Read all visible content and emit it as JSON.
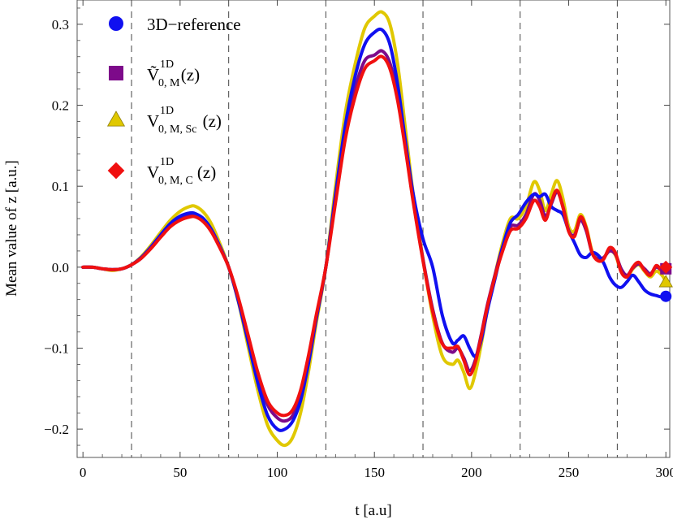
{
  "chart_data": {
    "type": "line",
    "xlabel": "t  [a.u]",
    "ylabel": "Mean value of z   [a.u.]",
    "xlim": [
      -3,
      302
    ],
    "ylim": [
      -0.235,
      0.33
    ],
    "xticks": [
      0,
      50,
      100,
      150,
      200,
      250,
      300
    ],
    "xtick_labels": [
      "0",
      "50",
      "100",
      "150",
      "200",
      "250",
      "300"
    ],
    "yticks": [
      -0.2,
      -0.1,
      0.0,
      0.1,
      0.2,
      0.3
    ],
    "ytick_labels": [
      "−0.2",
      "−0.1",
      "0.0",
      "0.1",
      "0.2",
      "0.3"
    ],
    "vlines": [
      25,
      75,
      125,
      175,
      225,
      275
    ],
    "grid": false,
    "legend_position": "top-left",
    "legend": [
      {
        "marker": "circle",
        "color": "#1010f0",
        "label": "3D−reference",
        "base": "",
        "sup": "",
        "sub": "",
        "tail": ""
      },
      {
        "marker": "square",
        "color": "#7d0a8a",
        "label": "",
        "base": "Ṽ",
        "sup": "1D",
        "sub": "0, M",
        "tail": "(z)"
      },
      {
        "marker": "triangle",
        "color": "#e0c800",
        "label": "",
        "base": "V",
        "sup": "1D",
        "sub": "0, M, Sc",
        "tail": "(z)"
      },
      {
        "marker": "diamond",
        "color": "#f01010",
        "label": "",
        "base": "V",
        "sup": "1D",
        "sub": "0, M, C",
        "tail": "(z)"
      }
    ],
    "series": [
      {
        "color": "#e0c800",
        "end_marker": "triangle",
        "x": [
          0,
          5,
          10,
          15,
          20,
          25,
          30,
          35,
          40,
          45,
          50,
          55,
          58,
          62,
          66,
          70,
          75,
          80,
          85,
          90,
          95,
          100,
          104,
          108,
          112,
          116,
          120,
          125,
          130,
          135,
          140,
          145,
          150,
          154,
          158,
          162,
          166,
          170,
          175,
          180,
          185,
          190,
          193,
          196,
          199,
          202,
          205,
          208,
          212,
          216,
          220,
          224,
          228,
          232,
          235,
          238,
          241,
          244,
          247,
          250,
          253,
          256,
          259,
          262,
          265,
          268,
          271,
          274,
          277,
          280,
          283,
          286,
          289,
          292,
          295,
          298,
          300
        ],
        "y": [
          0,
          0,
          -0.002,
          -0.004,
          -0.002,
          0.003,
          0.013,
          0.027,
          0.043,
          0.058,
          0.069,
          0.075,
          0.075,
          0.068,
          0.054,
          0.032,
          0.0,
          -0.043,
          -0.098,
          -0.152,
          -0.195,
          -0.214,
          -0.22,
          -0.21,
          -0.18,
          -0.13,
          -0.07,
          0.0,
          0.1,
          0.19,
          0.25,
          0.295,
          0.31,
          0.315,
          0.3,
          0.25,
          0.17,
          0.09,
          0.01,
          -0.06,
          -0.11,
          -0.12,
          -0.115,
          -0.13,
          -0.15,
          -0.13,
          -0.095,
          -0.055,
          -0.01,
          0.03,
          0.06,
          0.06,
          0.075,
          0.105,
          0.095,
          0.07,
          0.09,
          0.107,
          0.085,
          0.05,
          0.045,
          0.065,
          0.05,
          0.02,
          0.01,
          0.012,
          0.02,
          0.015,
          -0.005,
          -0.012,
          -0.002,
          0.003,
          -0.005,
          -0.012,
          -0.005,
          -0.01,
          -0.018
        ]
      },
      {
        "color": "#7d0a8a",
        "end_marker": "square",
        "x": [
          0,
          5,
          10,
          15,
          20,
          25,
          30,
          35,
          40,
          45,
          50,
          55,
          58,
          62,
          66,
          70,
          75,
          80,
          85,
          90,
          95,
          100,
          104,
          108,
          112,
          116,
          120,
          125,
          130,
          135,
          140,
          145,
          150,
          154,
          158,
          162,
          166,
          170,
          175,
          180,
          185,
          190,
          193,
          196,
          199,
          202,
          205,
          208,
          212,
          216,
          220,
          224,
          228,
          232,
          235,
          238,
          241,
          244,
          247,
          250,
          253,
          256,
          259,
          262,
          265,
          268,
          271,
          274,
          277,
          280,
          283,
          286,
          289,
          292,
          295,
          298,
          300
        ],
        "y": [
          0,
          0,
          -0.002,
          -0.003,
          -0.002,
          0.003,
          0.011,
          0.024,
          0.038,
          0.052,
          0.061,
          0.065,
          0.064,
          0.058,
          0.046,
          0.027,
          0.0,
          -0.04,
          -0.087,
          -0.135,
          -0.17,
          -0.186,
          -0.19,
          -0.183,
          -0.158,
          -0.116,
          -0.063,
          0.0,
          0.086,
          0.165,
          0.22,
          0.255,
          0.262,
          0.267,
          0.252,
          0.21,
          0.148,
          0.082,
          0.01,
          -0.052,
          -0.094,
          -0.105,
          -0.1,
          -0.112,
          -0.128,
          -0.114,
          -0.083,
          -0.048,
          -0.01,
          0.025,
          0.05,
          0.052,
          0.065,
          0.09,
          0.083,
          0.063,
          0.078,
          0.093,
          0.075,
          0.045,
          0.04,
          0.058,
          0.045,
          0.018,
          0.01,
          0.012,
          0.02,
          0.016,
          -0.002,
          -0.01,
          -0.001,
          0.004,
          -0.002,
          -0.008,
          0.0,
          -0.004,
          -0.002
        ]
      },
      {
        "color": "#1010f0",
        "end_marker": "circle",
        "x": [
          0,
          5,
          10,
          15,
          20,
          25,
          30,
          35,
          40,
          45,
          50,
          55,
          58,
          62,
          66,
          70,
          75,
          80,
          85,
          90,
          95,
          100,
          104,
          108,
          112,
          116,
          120,
          125,
          130,
          135,
          140,
          145,
          150,
          154,
          158,
          162,
          166,
          170,
          175,
          180,
          185,
          190,
          193,
          196,
          199,
          202,
          205,
          208,
          212,
          216,
          220,
          224,
          228,
          232,
          235,
          238,
          241,
          244,
          247,
          250,
          253,
          256,
          259,
          262,
          265,
          268,
          271,
          274,
          277,
          280,
          283,
          286,
          289,
          292,
          295,
          298,
          300
        ],
        "y": [
          0,
          0,
          -0.002,
          -0.003,
          -0.002,
          0.003,
          0.012,
          0.025,
          0.04,
          0.054,
          0.063,
          0.067,
          0.066,
          0.06,
          0.047,
          0.028,
          0.0,
          -0.042,
          -0.092,
          -0.143,
          -0.183,
          -0.2,
          -0.2,
          -0.19,
          -0.165,
          -0.12,
          -0.065,
          0.0,
          0.09,
          0.175,
          0.235,
          0.275,
          0.29,
          0.293,
          0.275,
          0.225,
          0.155,
          0.09,
          0.035,
          0.0,
          -0.06,
          -0.093,
          -0.09,
          -0.085,
          -0.1,
          -0.11,
          -0.09,
          -0.055,
          -0.015,
          0.025,
          0.055,
          0.065,
          0.08,
          0.09,
          0.087,
          0.09,
          0.075,
          0.07,
          0.065,
          0.045,
          0.03,
          0.015,
          0.012,
          0.018,
          0.015,
          0.005,
          -0.012,
          -0.022,
          -0.025,
          -0.018,
          -0.01,
          -0.018,
          -0.028,
          -0.033,
          -0.035,
          -0.037,
          -0.036
        ]
      },
      {
        "color": "#f01010",
        "end_marker": "diamond",
        "x": [
          0,
          5,
          10,
          15,
          20,
          25,
          30,
          35,
          40,
          45,
          50,
          55,
          58,
          62,
          66,
          70,
          75,
          80,
          85,
          90,
          95,
          100,
          104,
          108,
          112,
          116,
          120,
          125,
          130,
          135,
          140,
          145,
          150,
          154,
          158,
          162,
          166,
          170,
          175,
          180,
          185,
          190,
          193,
          196,
          199,
          202,
          205,
          208,
          212,
          216,
          220,
          224,
          228,
          232,
          235,
          238,
          241,
          244,
          247,
          250,
          253,
          256,
          259,
          262,
          265,
          268,
          271,
          274,
          277,
          280,
          283,
          286,
          289,
          292,
          295,
          298,
          300
        ],
        "y": [
          0,
          0,
          -0.002,
          -0.003,
          -0.002,
          0.003,
          0.011,
          0.023,
          0.037,
          0.05,
          0.058,
          0.062,
          0.062,
          0.056,
          0.044,
          0.026,
          0.0,
          -0.038,
          -0.084,
          -0.13,
          -0.165,
          -0.18,
          -0.183,
          -0.176,
          -0.152,
          -0.11,
          -0.06,
          0.0,
          0.08,
          0.158,
          0.21,
          0.245,
          0.255,
          0.26,
          0.245,
          0.205,
          0.145,
          0.08,
          0.008,
          -0.055,
          -0.095,
          -0.1,
          -0.098,
          -0.115,
          -0.133,
          -0.117,
          -0.085,
          -0.05,
          -0.012,
          0.02,
          0.045,
          0.048,
          0.06,
          0.082,
          0.075,
          0.058,
          0.08,
          0.095,
          0.074,
          0.044,
          0.038,
          0.062,
          0.048,
          0.018,
          0.008,
          0.01,
          0.024,
          0.018,
          -0.006,
          -0.012,
          0.0,
          0.006,
          -0.004,
          -0.01,
          0.002,
          -0.004,
          0.0
        ]
      }
    ]
  }
}
